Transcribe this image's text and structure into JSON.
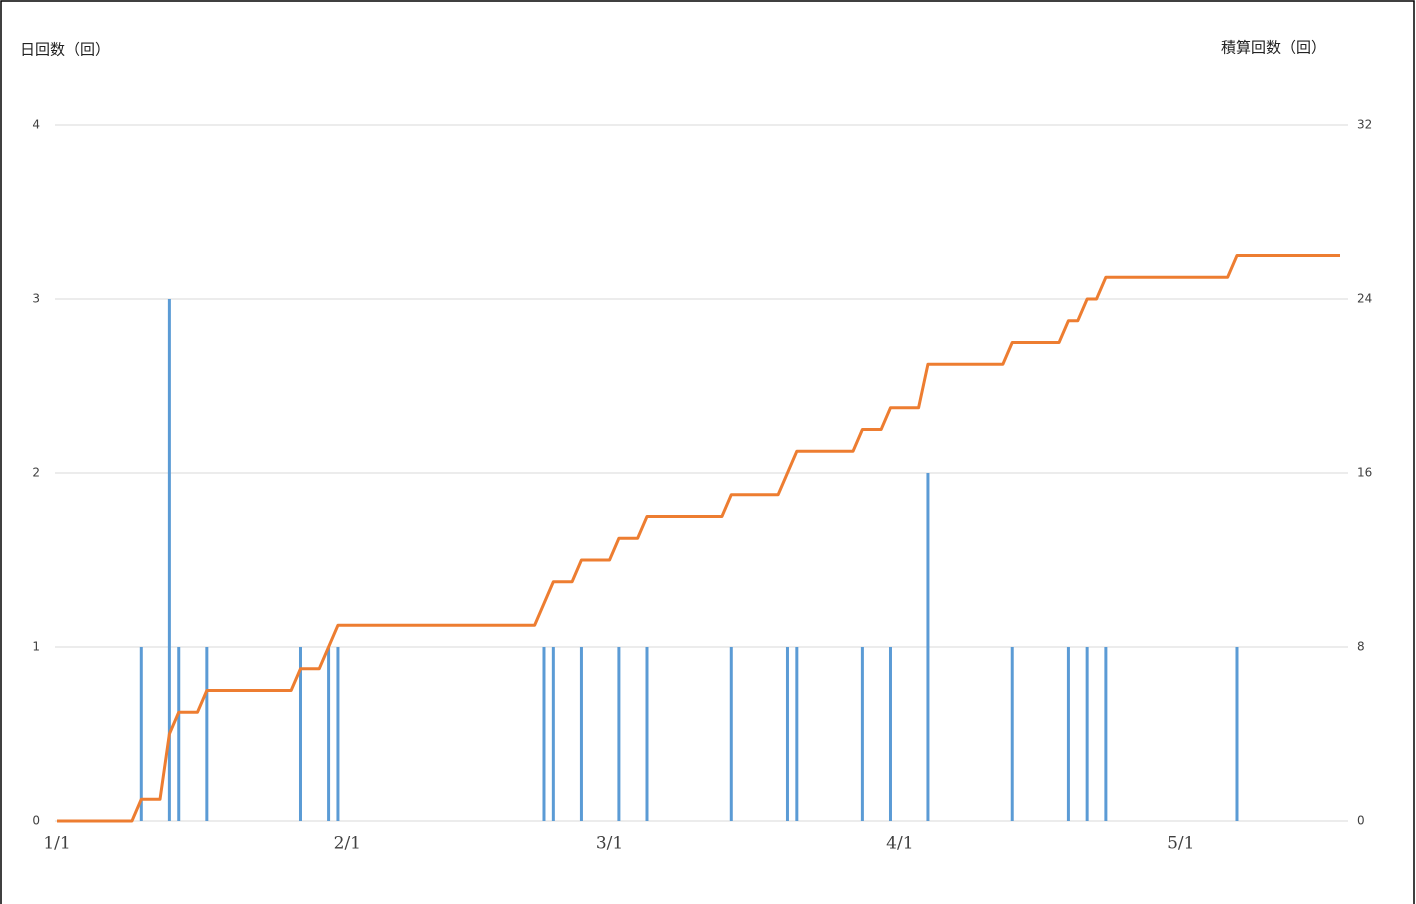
{
  "chart_data": {
    "type": "bar-line",
    "y_label": "日回数（回）",
    "y2_label": "積算回数（回）",
    "categories": [
      "1/1",
      null,
      null,
      null,
      null,
      null,
      null,
      null,
      null,
      null,
      null,
      null,
      null,
      null,
      null,
      null,
      null,
      null,
      null,
      null,
      null,
      null,
      null,
      null,
      null,
      null,
      null,
      null,
      null,
      null,
      null,
      "2/1",
      null,
      null,
      null,
      null,
      null,
      null,
      null,
      null,
      null,
      null,
      null,
      null,
      null,
      null,
      null,
      null,
      null,
      null,
      null,
      null,
      null,
      null,
      null,
      null,
      null,
      null,
      null,
      "3/1",
      null,
      null,
      null,
      null,
      null,
      null,
      null,
      null,
      null,
      null,
      null,
      null,
      null,
      null,
      null,
      null,
      null,
      null,
      null,
      null,
      null,
      null,
      null,
      null,
      null,
      null,
      null,
      null,
      null,
      null,
      "4/1",
      null,
      null,
      null,
      null,
      null,
      null,
      null,
      null,
      null,
      null,
      null,
      null,
      null,
      null,
      null,
      null,
      null,
      null,
      null,
      null,
      null,
      null,
      null,
      null,
      null,
      null,
      null,
      null,
      null,
      "5/1",
      null,
      null,
      null,
      null,
      null,
      null,
      null,
      null,
      null,
      null,
      null,
      null,
      null,
      null,
      null,
      null,
      null
    ],
    "series": [
      {
        "kind": "bar",
        "color": "#5b9bd5",
        "values": [
          0,
          0,
          0,
          0,
          0,
          0,
          0,
          0,
          0,
          1,
          0,
          0,
          3,
          1,
          0,
          0,
          1,
          0,
          0,
          0,
          0,
          0,
          0,
          0,
          0,
          0,
          1,
          0,
          0,
          1,
          1,
          0,
          0,
          0,
          0,
          0,
          0,
          0,
          0,
          0,
          0,
          0,
          0,
          0,
          0,
          0,
          0,
          0,
          0,
          0,
          0,
          0,
          1,
          1,
          0,
          0,
          1,
          0,
          0,
          0,
          1,
          0,
          0,
          1,
          0,
          0,
          0,
          0,
          0,
          0,
          0,
          0,
          1,
          0,
          0,
          0,
          0,
          0,
          1,
          1,
          0,
          0,
          0,
          0,
          0,
          0,
          1,
          0,
          0,
          1,
          0,
          0,
          0,
          2,
          0,
          0,
          0,
          0,
          0,
          0,
          0,
          0,
          1,
          0,
          0,
          0,
          0,
          0,
          1,
          0,
          1,
          0,
          1,
          0,
          0,
          0,
          0,
          0,
          0,
          0,
          0,
          0,
          0,
          0,
          0,
          0,
          1,
          0,
          0,
          0,
          0,
          0,
          0,
          0,
          0,
          0,
          0,
          0
        ]
      },
      {
        "kind": "line",
        "axis": "y2",
        "color": "#ed7d31",
        "values": [
          0,
          0,
          0,
          0,
          0,
          0,
          0,
          0,
          0,
          1,
          1,
          1,
          4,
          5,
          5,
          5,
          6,
          6,
          6,
          6,
          6,
          6,
          6,
          6,
          6,
          6,
          7,
          7,
          7,
          8,
          9,
          9,
          9,
          9,
          9,
          9,
          9,
          9,
          9,
          9,
          9,
          9,
          9,
          9,
          9,
          9,
          9,
          9,
          9,
          9,
          9,
          9,
          10,
          11,
          11,
          11,
          12,
          12,
          12,
          12,
          13,
          13,
          13,
          14,
          14,
          14,
          14,
          14,
          14,
          14,
          14,
          14,
          15,
          15,
          15,
          15,
          15,
          15,
          16,
          17,
          17,
          17,
          17,
          17,
          17,
          17,
          18,
          18,
          18,
          19,
          19,
          19,
          19,
          21,
          21,
          21,
          21,
          21,
          21,
          21,
          21,
          21,
          22,
          22,
          22,
          22,
          22,
          22,
          23,
          23,
          24,
          24,
          25,
          25,
          25,
          25,
          25,
          25,
          25,
          25,
          25,
          25,
          25,
          25,
          25,
          25,
          26,
          26,
          26,
          26,
          26,
          26,
          26,
          26,
          26,
          26,
          26,
          26
        ]
      }
    ],
    "ylim": [
      0,
      4
    ],
    "yticks": [
      0,
      1,
      2,
      3,
      4
    ],
    "y2lim": [
      0,
      32
    ],
    "y2ticks": [
      0,
      8,
      16,
      24,
      32
    ],
    "grid": true
  }
}
